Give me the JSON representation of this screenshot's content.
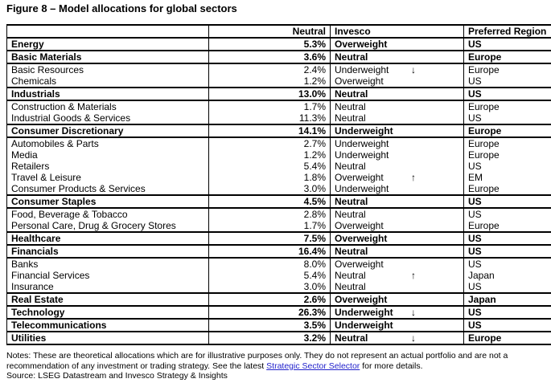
{
  "title": "Figure 8 – Model allocations for global sectors",
  "table": {
    "headers": [
      "",
      "Neutral",
      "Invesco",
      "Preferred Region"
    ],
    "rows": [
      {
        "name": "Energy",
        "neutral": "5.3%",
        "stance": "Overweight",
        "arrow": null,
        "region": "US",
        "bold": true
      },
      {
        "name": "Basic Materials",
        "neutral": "3.6%",
        "stance": "Neutral",
        "arrow": null,
        "region": "Europe",
        "bold": true
      },
      {
        "name": "Basic Resources",
        "neutral": "2.4%",
        "stance": "Underweight",
        "arrow": "down",
        "region": "Europe",
        "bold": false
      },
      {
        "name": "Chemicals",
        "neutral": "1.2%",
        "stance": "Overweight",
        "arrow": null,
        "region": "US",
        "bold": false
      },
      {
        "name": "Industrials",
        "neutral": "13.0%",
        "stance": "Neutral",
        "arrow": null,
        "region": "US",
        "bold": true
      },
      {
        "name": "Construction & Materials",
        "neutral": "1.7%",
        "stance": "Neutral",
        "arrow": null,
        "region": "Europe",
        "bold": false
      },
      {
        "name": "Industrial Goods & Services",
        "neutral": "11.3%",
        "stance": "Neutral",
        "arrow": null,
        "region": "US",
        "bold": false
      },
      {
        "name": "Consumer Discretionary",
        "neutral": "14.1%",
        "stance": "Underweight",
        "arrow": null,
        "region": "Europe",
        "bold": true
      },
      {
        "name": "Automobiles & Parts",
        "neutral": "2.7%",
        "stance": "Underweight",
        "arrow": null,
        "region": "Europe",
        "bold": false
      },
      {
        "name": "Media",
        "neutral": "1.2%",
        "stance": "Underweight",
        "arrow": null,
        "region": "Europe",
        "bold": false
      },
      {
        "name": "Retailers",
        "neutral": "5.4%",
        "stance": "Neutral",
        "arrow": null,
        "region": "US",
        "bold": false
      },
      {
        "name": "Travel & Leisure",
        "neutral": "1.8%",
        "stance": "Overweight",
        "arrow": "up",
        "region": "EM",
        "bold": false
      },
      {
        "name": "Consumer Products & Services",
        "neutral": "3.0%",
        "stance": "Underweight",
        "arrow": null,
        "region": "Europe",
        "bold": false
      },
      {
        "name": "Consumer Staples",
        "neutral": "4.5%",
        "stance": "Neutral",
        "arrow": null,
        "region": "US",
        "bold": true
      },
      {
        "name": "Food, Beverage & Tobacco",
        "neutral": "2.8%",
        "stance": "Neutral",
        "arrow": null,
        "region": "US",
        "bold": false
      },
      {
        "name": "Personal Care, Drug & Grocery Stores",
        "neutral": "1.7%",
        "stance": "Overweight",
        "arrow": null,
        "region": "Europe",
        "bold": false
      },
      {
        "name": "Healthcare",
        "neutral": "7.5%",
        "stance": "Overweight",
        "arrow": null,
        "region": "US",
        "bold": true
      },
      {
        "name": "Financials",
        "neutral": "16.4%",
        "stance": "Neutral",
        "arrow": null,
        "region": "US",
        "bold": true
      },
      {
        "name": "Banks",
        "neutral": "8.0%",
        "stance": "Overweight",
        "arrow": null,
        "region": "US",
        "bold": false
      },
      {
        "name": "Financial Services",
        "neutral": "5.4%",
        "stance": "Neutral",
        "arrow": "up",
        "region": "Japan",
        "bold": false
      },
      {
        "name": "Insurance",
        "neutral": "3.0%",
        "stance": "Neutral",
        "arrow": null,
        "region": "US",
        "bold": false
      },
      {
        "name": "Real Estate",
        "neutral": "2.6%",
        "stance": "Overweight",
        "arrow": null,
        "region": "Japan",
        "bold": true
      },
      {
        "name": "Technology",
        "neutral": "26.3%",
        "stance": "Underweight",
        "arrow": "down",
        "region": "US",
        "bold": true
      },
      {
        "name": "Telecommunications",
        "neutral": "3.5%",
        "stance": "Underweight",
        "arrow": null,
        "region": "US",
        "bold": true
      },
      {
        "name": "Utilities",
        "neutral": "3.2%",
        "stance": "Neutral",
        "arrow": "down",
        "region": "Europe",
        "bold": true
      }
    ]
  },
  "arrows": {
    "up": "↑",
    "down": "↓"
  },
  "notes": {
    "prefix": "Notes: These are theoretical allocations which are for illustrative purposes only. They do not represent an actual portfolio and are not a recommendation of any investment or trading strategy. See the latest ",
    "link": "Strategic Sector Selector",
    "suffix": " for more details.",
    "source": "Source: LSEG Datastream and Invesco Strategy & Insights",
    "link_color": "#2222CC",
    "text_color": "#000000"
  }
}
